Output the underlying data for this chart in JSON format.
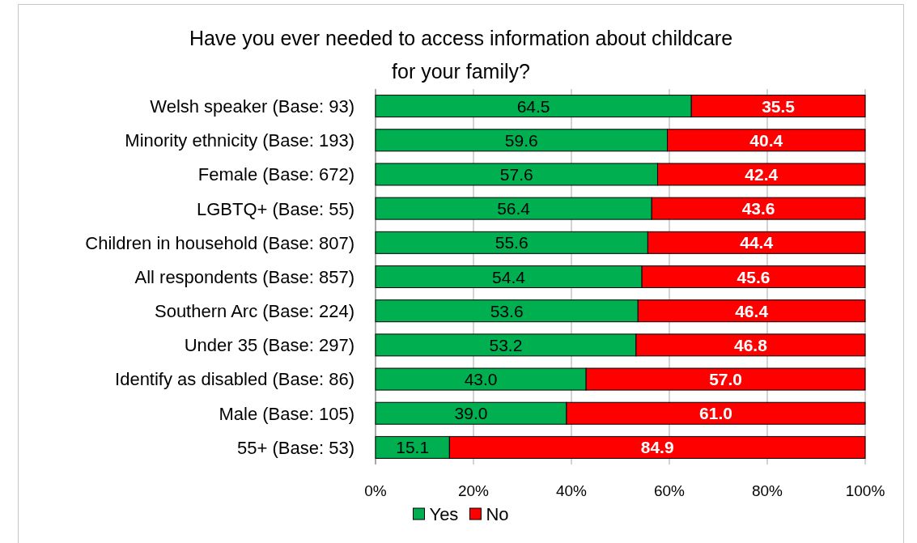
{
  "chart_data": {
    "type": "bar",
    "orientation": "horizontal",
    "stacked": true,
    "title": "Have you ever needed to access information about childcare for your family?",
    "categories": [
      "Welsh speaker (Base: 93)",
      "Minority ethnicity (Base: 193)",
      "Female (Base: 672)",
      "LGBTQ+ (Base: 55)",
      "Children in household (Base: 807)",
      "All respondents (Base: 857)",
      "Southern Arc (Base: 224)",
      "Under 35 (Base: 297)",
      "Identify as disabled (Base: 86)",
      "Male (Base: 105)",
      "55+ (Base: 53)"
    ],
    "series": [
      {
        "name": "Yes",
        "color": "#00b050",
        "values": [
          64.5,
          59.6,
          57.6,
          56.4,
          55.6,
          54.4,
          53.6,
          53.2,
          43.0,
          39.0,
          15.1
        ],
        "value_labels": [
          "64.5",
          "59.6",
          "57.6",
          "56.4",
          "55.6",
          "54.4",
          "53.6",
          "53.2",
          "43.0",
          "39.0",
          "15.1"
        ]
      },
      {
        "name": "No",
        "color": "#ff0000",
        "values": [
          35.5,
          40.4,
          42.4,
          43.6,
          44.4,
          45.6,
          46.4,
          46.8,
          57.0,
          61.0,
          84.9
        ],
        "value_labels": [
          "35.5",
          "40.4",
          "42.4",
          "43.6",
          "44.4",
          "45.6",
          "46.4",
          "46.8",
          "57.0",
          "61.0",
          "84.9"
        ]
      }
    ],
    "xlim": [
      0,
      100
    ],
    "xticks": [
      {
        "value": 0,
        "label": "0%"
      },
      {
        "value": 20,
        "label": "20%"
      },
      {
        "value": 40,
        "label": "40%"
      },
      {
        "value": 60,
        "label": "60%"
      },
      {
        "value": 80,
        "label": "80%"
      },
      {
        "value": 100,
        "label": "100%"
      }
    ],
    "grid": "x",
    "legend": "bottom"
  }
}
